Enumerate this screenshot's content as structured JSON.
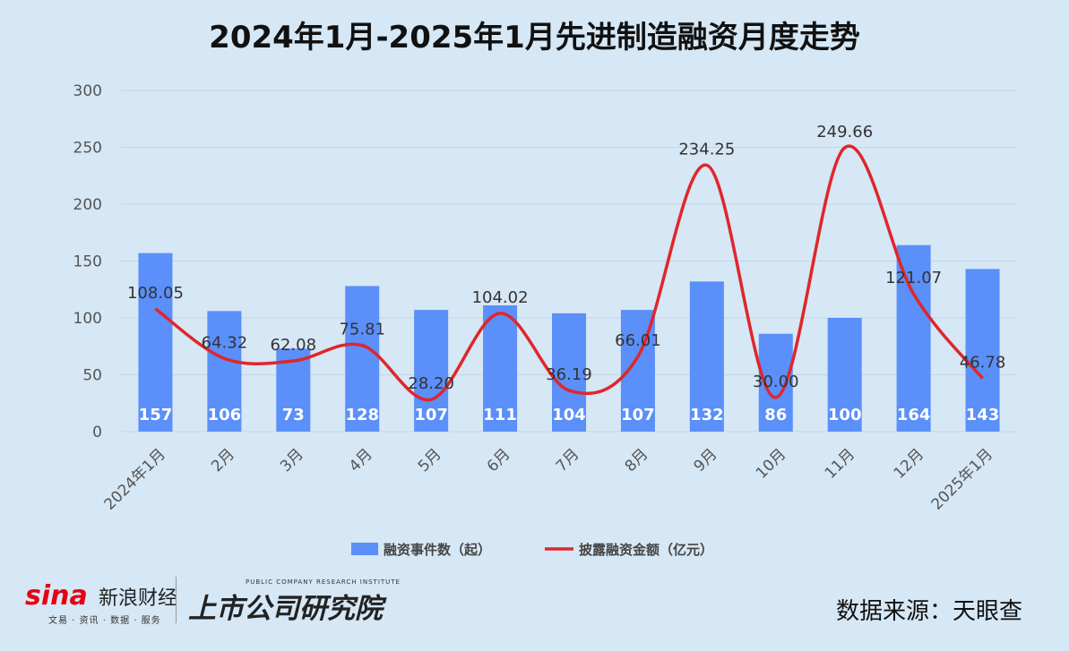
{
  "chart_data": {
    "type": "bar+line",
    "title": "2024年1月-2025年1月先进制造融资月度走势",
    "categories": [
      "2024年1月",
      "2月",
      "3月",
      "4月",
      "5月",
      "6月",
      "7月",
      "8月",
      "9月",
      "10月",
      "11月",
      "12月",
      "2025年1月"
    ],
    "series": [
      {
        "name": "融资事件数（起）",
        "type": "bar",
        "color": "#5b8ff9",
        "values": [
          157,
          106,
          73,
          128,
          107,
          111,
          104,
          107,
          132,
          86,
          100,
          164,
          143
        ]
      },
      {
        "name": "披露融资金额（亿元）",
        "type": "line",
        "color": "#e0262b",
        "values": [
          108.05,
          64.32,
          62.08,
          75.81,
          28.2,
          104.02,
          36.19,
          66.01,
          234.25,
          30.0,
          249.66,
          121.07,
          46.78
        ],
        "labels": [
          "108.05",
          "64.32",
          "62.08",
          "75.81",
          "28.20",
          "104.02",
          "36.19",
          "66.01",
          "234.25",
          "30.00",
          "249.66",
          "121.07",
          "46.78"
        ]
      }
    ],
    "ylim": [
      0,
      300
    ],
    "yticks": [
      0,
      50,
      100,
      150,
      200,
      250,
      300
    ],
    "grid": true,
    "legend_position": "bottom"
  },
  "footer": {
    "logo_text": "sina",
    "brand_name": "新浪财经",
    "brand_sub": "文易 · 资讯 · 数据 · 服务",
    "institute_en": "PUBLIC COMPANY RESEARCH INSTITUTE",
    "institute_cn": "上市公司研究院",
    "source": "数据来源：天眼查"
  }
}
